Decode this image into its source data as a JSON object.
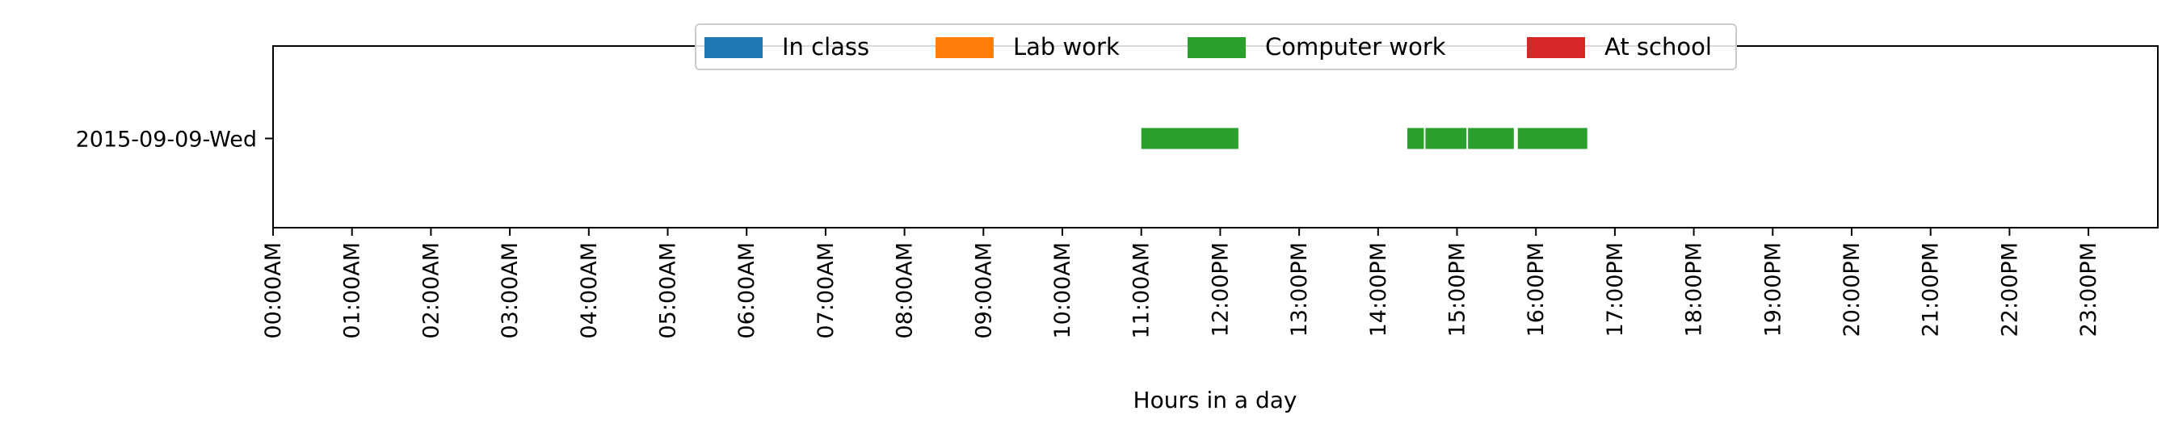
{
  "chart_data": {
    "type": "timeline",
    "title": "",
    "xlabel": "Hours in a day",
    "ylabel": "",
    "xlim": [
      0,
      24
    ],
    "x_ticks": [
      "00:00AM",
      "01:00AM",
      "02:00AM",
      "03:00AM",
      "04:00AM",
      "05:00AM",
      "06:00AM",
      "07:00AM",
      "08:00AM",
      "09:00AM",
      "10:00AM",
      "11:00AM",
      "12:00PM",
      "13:00PM",
      "14:00PM",
      "15:00PM",
      "16:00PM",
      "17:00PM",
      "18:00PM",
      "19:00PM",
      "20:00PM",
      "21:00PM",
      "22:00PM",
      "23:00PM"
    ],
    "categories": [
      "2015-09-09-Wed"
    ],
    "legend_position": "top-center",
    "grid": false,
    "legend": [
      {
        "name": "In class",
        "color": "#1f77b4"
      },
      {
        "name": "Lab work",
        "color": "#ff7f0e"
      },
      {
        "name": "Computer work",
        "color": "#2ca02c"
      },
      {
        "name": "At school",
        "color": "#d62728"
      }
    ],
    "series": [
      {
        "name": "Computer work",
        "color": "#2ca02c",
        "category": "2015-09-09-Wed",
        "intervals": [
          {
            "start": 11.0,
            "end": 12.23
          },
          {
            "start": 14.37,
            "end": 14.58
          },
          {
            "start": 14.6,
            "end": 15.12
          },
          {
            "start": 15.14,
            "end": 15.72
          },
          {
            "start": 15.77,
            "end": 16.65
          }
        ]
      }
    ]
  }
}
